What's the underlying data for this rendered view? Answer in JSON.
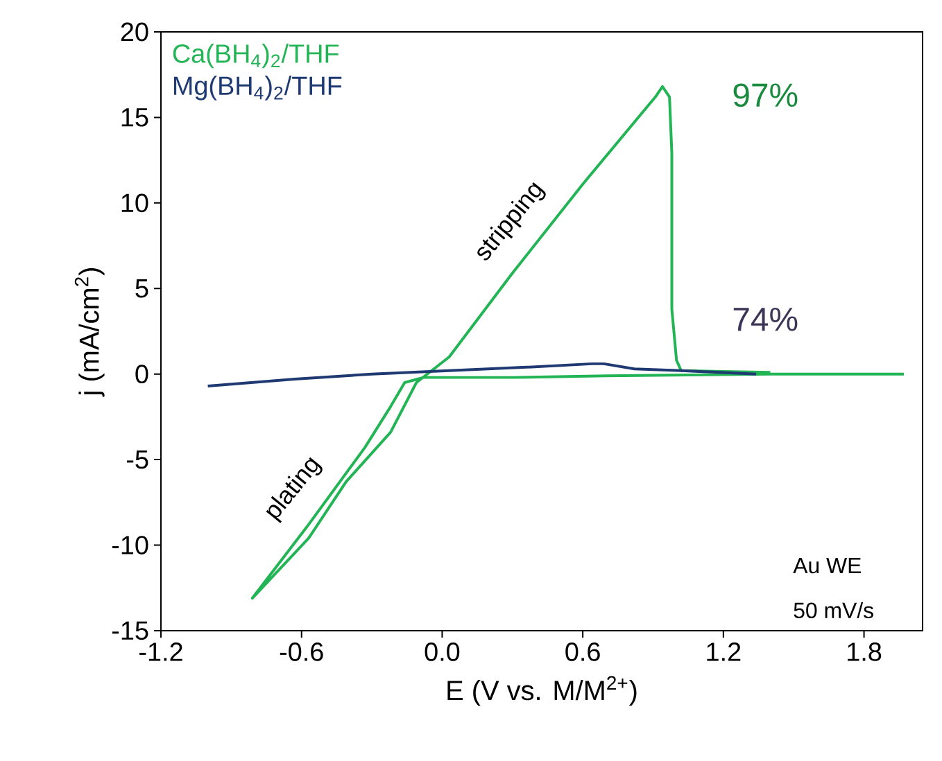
{
  "chart_data": {
    "type": "line",
    "xlabel": "E (V vs. M/M$^{2+}$)",
    "ylabel": "j (mA/cm$^{2}$)",
    "xlim": [
      -1.2,
      2.05
    ],
    "ylim": [
      -15,
      20
    ],
    "xticks": [
      -1.2,
      -0.6,
      {
        "value": 0,
        "label": "0.0"
      },
      0.6,
      1.2,
      1.8
    ],
    "yticks": [
      -15,
      -10,
      -5,
      0,
      5,
      10,
      15,
      20
    ],
    "grid": false,
    "legend": "top left",
    "marker": "none",
    "line_style": "solid",
    "series": [
      {
        "name": "Ca(BH$_{4}$)$_{2}$/THF",
        "color": "#22b455",
        "x": [
          1.97,
          1.4,
          0.7,
          0.3,
          -0.08,
          -0.16,
          -0.22,
          -0.33,
          -0.57,
          -0.81,
          -0.57,
          -0.41,
          -0.22,
          -0.11,
          0.03,
          0.3,
          0.6,
          0.91,
          0.94,
          0.97,
          0.98,
          0.98,
          1.0,
          1.02,
          1.4
        ],
        "values": [
          0.0,
          0.0,
          -0.1,
          -0.2,
          -0.2,
          -0.5,
          -1.9,
          -4.3,
          -8.8,
          -13.1,
          -9.6,
          -6.3,
          -3.4,
          -0.5,
          1.0,
          5.9,
          11.1,
          16.2,
          16.8,
          16.2,
          12.9,
          3.8,
          0.8,
          0.2,
          0.1
        ]
      },
      {
        "name": "Mg(BH$_{4}$)$_{2}$/THF",
        "color": "#1f3a73",
        "x": [
          -1.0,
          -0.63,
          -0.3,
          0.03,
          0.36,
          0.64,
          0.69,
          0.82,
          1.02,
          1.34
        ],
        "values": [
          -0.7,
          -0.3,
          0.0,
          0.2,
          0.4,
          0.6,
          0.6,
          0.3,
          0.2,
          0.0
        ]
      }
    ],
    "annotations": [
      "97%",
      "74%",
      "stripping",
      "plating",
      "Au WE",
      "50 mV/s"
    ]
  }
}
